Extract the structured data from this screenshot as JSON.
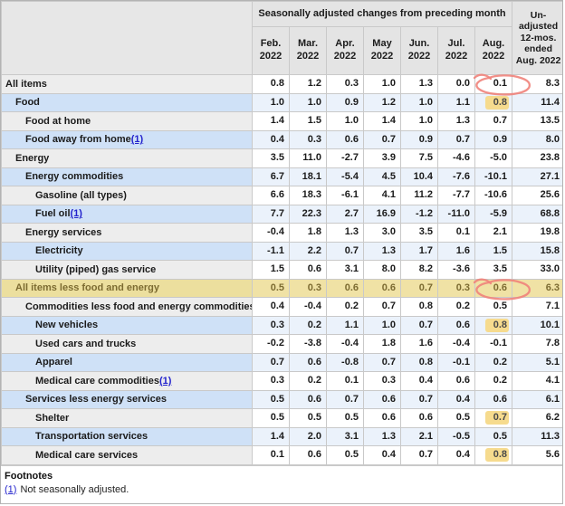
{
  "chart_data": {
    "type": "table",
    "column_group_header": "Seasonally adjusted changes from preceding month",
    "unadjusted_column_header": "Un-adjusted 12-mos. ended Aug. 2022",
    "columns": [
      "Feb. 2022",
      "Mar. 2022",
      "Apr. 2022",
      "May 2022",
      "Jun. 2022",
      "Jul. 2022",
      "Aug. 2022",
      "Un-adjusted 12-mos. ended Aug. 2022"
    ],
    "rows": [
      {
        "label": "All items",
        "indent": 0,
        "values": [
          "0.8",
          "1.2",
          "0.3",
          "1.0",
          "1.3",
          "0.0",
          "0.1",
          "8.3"
        ],
        "circle": 6
      },
      {
        "label": "Food",
        "indent": 1,
        "values": [
          "1.0",
          "1.0",
          "0.9",
          "1.2",
          "1.0",
          "1.1",
          "0.8",
          "11.4"
        ],
        "mark": 6
      },
      {
        "label": "Food at home",
        "indent": 2,
        "values": [
          "1.4",
          "1.5",
          "1.0",
          "1.4",
          "1.0",
          "1.3",
          "0.7",
          "13.5"
        ]
      },
      {
        "label": "Food away from home",
        "ref": "(1)",
        "indent": 2,
        "values": [
          "0.4",
          "0.3",
          "0.6",
          "0.7",
          "0.9",
          "0.7",
          "0.9",
          "8.0"
        ]
      },
      {
        "label": "Energy",
        "indent": 1,
        "values": [
          "3.5",
          "11.0",
          "-2.7",
          "3.9",
          "7.5",
          "-4.6",
          "-5.0",
          "23.8"
        ]
      },
      {
        "label": "Energy commodities",
        "indent": 2,
        "values": [
          "6.7",
          "18.1",
          "-5.4",
          "4.5",
          "10.4",
          "-7.6",
          "-10.1",
          "27.1"
        ]
      },
      {
        "label": "Gasoline (all types)",
        "indent": 3,
        "values": [
          "6.6",
          "18.3",
          "-6.1",
          "4.1",
          "11.2",
          "-7.7",
          "-10.6",
          "25.6"
        ]
      },
      {
        "label": "Fuel oil",
        "ref": "(1)",
        "indent": 3,
        "values": [
          "7.7",
          "22.3",
          "2.7",
          "16.9",
          "-1.2",
          "-11.0",
          "-5.9",
          "68.8"
        ]
      },
      {
        "label": "Energy services",
        "indent": 2,
        "values": [
          "-0.4",
          "1.8",
          "1.3",
          "3.0",
          "3.5",
          "0.1",
          "2.1",
          "19.8"
        ]
      },
      {
        "label": "Electricity",
        "indent": 3,
        "values": [
          "-1.1",
          "2.2",
          "0.7",
          "1.3",
          "1.7",
          "1.6",
          "1.5",
          "15.8"
        ]
      },
      {
        "label": "Utility (piped) gas service",
        "indent": 3,
        "values": [
          "1.5",
          "0.6",
          "3.1",
          "8.0",
          "8.2",
          "-3.6",
          "3.5",
          "33.0"
        ]
      },
      {
        "label": "All items less food and energy",
        "indent": 1,
        "values": [
          "0.5",
          "0.3",
          "0.6",
          "0.6",
          "0.7",
          "0.3",
          "0.6",
          "6.3"
        ],
        "highlight": true,
        "circle": 6
      },
      {
        "label": "Commodities less food and energy commodities",
        "indent": 2,
        "values": [
          "0.4",
          "-0.4",
          "0.2",
          "0.7",
          "0.8",
          "0.2",
          "0.5",
          "7.1"
        ]
      },
      {
        "label": "New vehicles",
        "indent": 3,
        "values": [
          "0.3",
          "0.2",
          "1.1",
          "1.0",
          "0.7",
          "0.6",
          "0.8",
          "10.1"
        ],
        "mark": 6
      },
      {
        "label": "Used cars and trucks",
        "indent": 3,
        "values": [
          "-0.2",
          "-3.8",
          "-0.4",
          "1.8",
          "1.6",
          "-0.4",
          "-0.1",
          "7.8"
        ]
      },
      {
        "label": "Apparel",
        "indent": 3,
        "values": [
          "0.7",
          "0.6",
          "-0.8",
          "0.7",
          "0.8",
          "-0.1",
          "0.2",
          "5.1"
        ]
      },
      {
        "label": "Medical care commodities",
        "ref": "(1)",
        "indent": 3,
        "values": [
          "0.3",
          "0.2",
          "0.1",
          "0.3",
          "0.4",
          "0.6",
          "0.2",
          "4.1"
        ]
      },
      {
        "label": "Services less energy services",
        "indent": 2,
        "values": [
          "0.5",
          "0.6",
          "0.7",
          "0.6",
          "0.7",
          "0.4",
          "0.6",
          "6.1"
        ]
      },
      {
        "label": "Shelter",
        "indent": 3,
        "values": [
          "0.5",
          "0.5",
          "0.5",
          "0.6",
          "0.6",
          "0.5",
          "0.7",
          "6.2"
        ],
        "mark": 6
      },
      {
        "label": "Transportation services",
        "indent": 3,
        "values": [
          "1.4",
          "2.0",
          "3.1",
          "1.3",
          "2.1",
          "-0.5",
          "0.5",
          "11.3"
        ]
      },
      {
        "label": "Medical care services",
        "indent": 3,
        "values": [
          "0.1",
          "0.6",
          "0.5",
          "0.4",
          "0.7",
          "0.4",
          "0.8",
          "5.6"
        ],
        "mark": 6
      }
    ]
  },
  "header": {
    "group_label": "Seasonally adjusted changes from preceding month",
    "unadjusted_lines": "Un-\nadjusted\n12-mos.\nended\nAug. 2022"
  },
  "footnotes": {
    "title": "Footnotes",
    "ref": "(1)",
    "text": "Not seasonally adjusted."
  },
  "colors": {
    "header_gray": "#e4e4e4",
    "row_blue_label": "#cfe1f7",
    "row_blue_data": "#ebf2fb",
    "row_gray_label": "#ededed",
    "highlight_row_yellow": "#f0e2a5",
    "marker_yellow": "#f6db8e",
    "annotation_red": "#ef837b",
    "footnote_link_blue": "#2323cd"
  }
}
